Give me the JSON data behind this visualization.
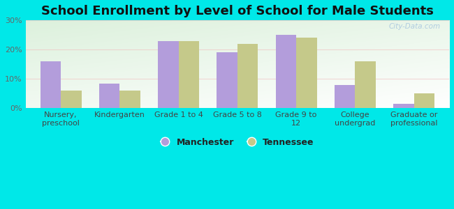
{
  "title": "School Enrollment by Level of School for Male Students",
  "categories": [
    "Nursery,\npreschool",
    "Kindergarten",
    "Grade 1 to 4",
    "Grade 5 to 8",
    "Grade 9 to\n12",
    "College\nundergrad",
    "Graduate or\nprofessional"
  ],
  "manchester_values": [
    16.0,
    8.5,
    23.0,
    19.0,
    25.0,
    8.0,
    1.5
  ],
  "tennessee_values": [
    6.0,
    6.0,
    23.0,
    22.0,
    24.0,
    16.0,
    5.0
  ],
  "manchester_color": "#b39ddb",
  "tennessee_color": "#c5c98a",
  "background_color": "#00e8e8",
  "plot_bg_top_left": "#d4ecd4",
  "plot_bg_bottom_right": "#f0f8f0",
  "ylim": [
    0,
    30
  ],
  "yticks": [
    0,
    10,
    20,
    30
  ],
  "ytick_labels": [
    "0%",
    "10%",
    "20%",
    "30%"
  ],
  "bar_width": 0.35,
  "title_fontsize": 13,
  "tick_fontsize": 8,
  "legend_fontsize": 9,
  "grid_color": "#e8e8e8",
  "watermark_text": "City-Data.com",
  "watermark_color": "#b0cce0"
}
